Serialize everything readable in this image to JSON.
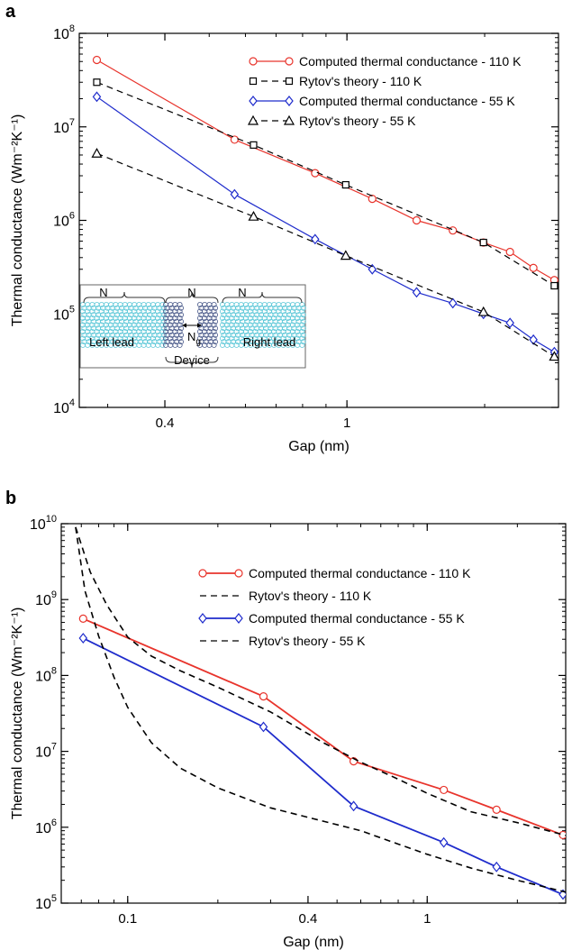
{
  "figure": {
    "panel_a_letter": "a",
    "panel_b_letter": "b"
  },
  "chart_data": [
    {
      "id": "a",
      "type": "line",
      "xscale": "log",
      "yscale": "log",
      "xlabel": "Gap (nm)",
      "ylabel": "Thermal conductance (Wm⁻²K⁻¹)",
      "xlim": [
        0.26,
        2.9
      ],
      "ylim": [
        10000,
        100000000
      ],
      "x_ticks": [
        {
          "v": 0.4,
          "label": "0.4"
        },
        {
          "v": 1,
          "label": "1"
        }
      ],
      "y_ticks": [
        {
          "v": 10000,
          "base": "10",
          "exp": "4"
        },
        {
          "v": 100000,
          "base": "10",
          "exp": "5"
        },
        {
          "v": 1000000,
          "base": "10",
          "exp": "6"
        },
        {
          "v": 10000000,
          "base": "10",
          "exp": "7"
        },
        {
          "v": 100000000,
          "base": "10",
          "exp": "8"
        }
      ],
      "grid": false,
      "legend_position": "top-right",
      "series": [
        {
          "name": "Computed thermal conductance - 110 K",
          "color": "#e8342c",
          "dash": false,
          "marker": "circle",
          "x": [
            0.284,
            0.568,
            0.852,
            1.136,
            1.42,
            1.704,
            1.988,
            2.272,
            2.556,
            2.84
          ],
          "y": [
            52000000,
            7300000,
            3200000,
            1700000,
            1000000,
            780000,
            580000,
            460000,
            310000,
            230000
          ]
        },
        {
          "name": "Rytov's theory - 110 K",
          "color": "#000000",
          "dash": true,
          "marker": "square",
          "x": [
            0.284,
            0.625,
            0.994,
            1.988,
            2.84
          ],
          "y": [
            30000000,
            6400000,
            2400000,
            580000,
            200000
          ]
        },
        {
          "name": "Computed thermal conductance - 55 K",
          "color": "#1f2ccc",
          "dash": false,
          "marker": "diamond",
          "x": [
            0.284,
            0.568,
            0.852,
            1.136,
            1.42,
            1.704,
            1.988,
            2.272,
            2.556,
            2.84
          ],
          "y": [
            21000000,
            1900000,
            630000,
            300000,
            170000,
            130000,
            100000,
            80000,
            53000,
            39000
          ]
        },
        {
          "name": "Rytov's theory - 55 K",
          "color": "#000000",
          "dash": true,
          "marker": "triangle",
          "x": [
            0.284,
            0.625,
            0.994,
            1.988,
            2.84
          ],
          "y": [
            5200000,
            1100000,
            420000,
            105000,
            35000
          ]
        }
      ],
      "inset": {
        "labels": {
          "n_left": "N",
          "n_center": "N",
          "n_right": "N",
          "gap_base": "N",
          "gap_sub": "g",
          "left_lead": "Left lead",
          "right_lead": "Right lead",
          "device": "Device"
        },
        "lead_color": "#5ec8d8",
        "device_color": "#4a5a8a"
      }
    },
    {
      "id": "b",
      "type": "line",
      "xscale": "log",
      "yscale": "log",
      "xlabel": "Gap (nm)",
      "ylabel": "Thermal conductance (Wm⁻²K⁻¹)",
      "xlim": [
        0.06,
        2.9
      ],
      "ylim": [
        100000,
        10000000000
      ],
      "x_ticks": [
        {
          "v": 0.1,
          "label": "0.1"
        },
        {
          "v": 0.4,
          "label": "0.4"
        },
        {
          "v": 1,
          "label": "1"
        }
      ],
      "y_ticks": [
        {
          "v": 100000,
          "base": "10",
          "exp": "5"
        },
        {
          "v": 1000000,
          "base": "10",
          "exp": "6"
        },
        {
          "v": 10000000,
          "base": "10",
          "exp": "7"
        },
        {
          "v": 100000000,
          "base": "10",
          "exp": "8"
        },
        {
          "v": 1000000000,
          "base": "10",
          "exp": "9"
        },
        {
          "v": 10000000000,
          "base": "10",
          "exp": "10"
        }
      ],
      "grid": false,
      "legend_position": "top-right",
      "series": [
        {
          "name": "Computed thermal conductance - 110 K",
          "color": "#e8342c",
          "dash": false,
          "marker": "circle",
          "x": [
            0.071,
            0.284,
            0.568,
            1.136,
            1.704,
            2.84
          ],
          "y": [
            560000000,
            53000000,
            7400000,
            3100000,
            1700000,
            790000
          ]
        },
        {
          "name": "Rytov's theory - 110 K",
          "color": "#000000",
          "dash": true,
          "marker": "none",
          "curve": "rytov110",
          "x": [
            0.067,
            0.075,
            0.085,
            0.1,
            0.12,
            0.15,
            0.2,
            0.3,
            0.45,
            0.6,
            0.8,
            1.0,
            1.4,
            2.0,
            2.9
          ],
          "y": [
            9000000000,
            2300000000,
            860000000,
            320000000,
            180000000,
            115000000,
            70000000,
            33000000,
            13000000,
            7200000,
            4300000,
            2800000,
            1600000,
            1150000,
            780000
          ]
        },
        {
          "name": "Computed thermal conductance - 55 K",
          "color": "#1f2ccc",
          "dash": false,
          "marker": "diamond",
          "x": [
            0.071,
            0.284,
            0.568,
            1.136,
            1.704,
            2.84
          ],
          "y": [
            310000000,
            21000000,
            1900000,
            630000,
            300000,
            130000
          ]
        },
        {
          "name": "Rytov's theory - 55 K",
          "color": "#000000",
          "dash": true,
          "marker": "none",
          "curve": "rytov55",
          "x": [
            0.067,
            0.072,
            0.08,
            0.09,
            0.1,
            0.12,
            0.15,
            0.2,
            0.3,
            0.45,
            0.6,
            0.8,
            1.0,
            1.4,
            2.0,
            2.9
          ],
          "y": [
            9000000000,
            1300000000,
            330000000,
            95000000,
            38000000,
            13000000,
            6000000,
            3300000,
            1800000,
            1200000,
            900000,
            600000,
            440000,
            290000,
            200000,
            140000
          ]
        }
      ]
    }
  ]
}
